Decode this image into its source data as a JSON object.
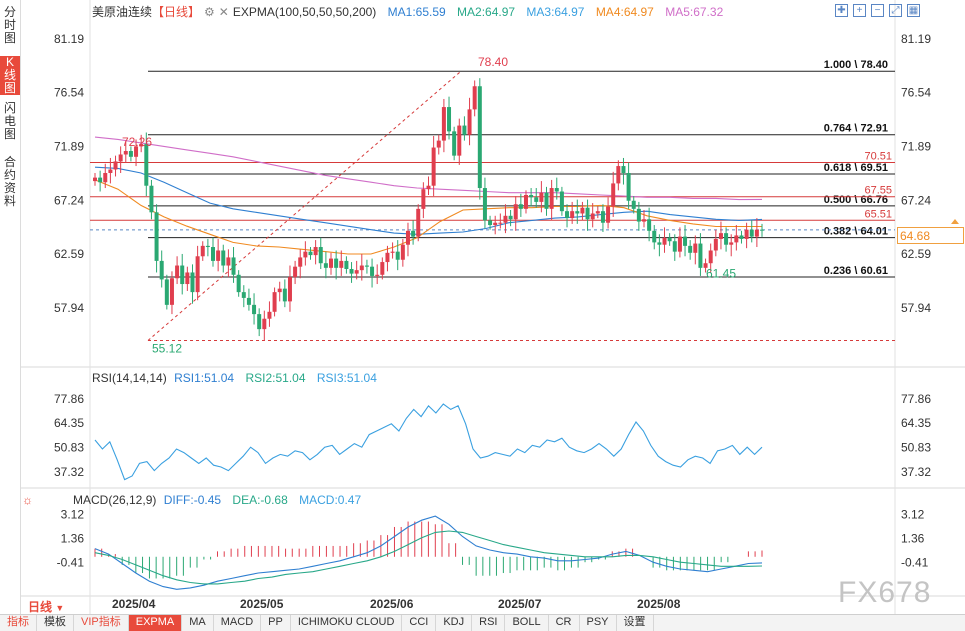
{
  "sidebar": {
    "tabs": [
      {
        "label": "分时图",
        "active": false
      },
      {
        "label": "K线图",
        "active": true
      },
      {
        "label": "闪电图",
        "active": false
      },
      {
        "label": "合约资料",
        "active": false
      }
    ]
  },
  "header": {
    "instrument": "美原油连续",
    "period_tag": "【日线】",
    "indicator": "EXPMA(100,50,50,50,200)",
    "ma": [
      {
        "label": "MA1:65.59",
        "color": "#2f7fd1"
      },
      {
        "label": "MA2:64.97",
        "color": "#28a889"
      },
      {
        "label": "MA3:64.97",
        "color": "#3aa0e0"
      },
      {
        "label": "MA4:64.97",
        "color": "#f08a20"
      },
      {
        "label": "MA5:67.32",
        "color": "#d06ec8"
      }
    ]
  },
  "price_axis": {
    "left": [
      "81.19",
      "76.54",
      "71.89",
      "67.24",
      "62.59",
      "57.94"
    ],
    "right": [
      "81.19",
      "76.54",
      "71.89",
      "67.24",
      "62.59",
      "57.94"
    ],
    "current": "64.68"
  },
  "fib_levels": [
    {
      "label": "1.000 \\ 78.40",
      "value": 78.4
    },
    {
      "label": "0.764 \\ 72.91",
      "value": 72.91
    },
    {
      "label": "0.618 \\ 69.51",
      "value": 69.51
    },
    {
      "label": "0.500 \\ 66.76",
      "value": 66.76
    },
    {
      "label": "0.382 \\ 64.01",
      "value": 64.01
    },
    {
      "label": "0.236 \\ 60.61",
      "value": 60.61
    }
  ],
  "red_levels": [
    {
      "label": "70.51",
      "value": 70.51
    },
    {
      "label": "67.55",
      "value": 67.55
    },
    {
      "label": "65.51",
      "value": 65.51
    }
  ],
  "annotations": {
    "high": "78.40",
    "low": "55.12",
    "peak_left": "72.26",
    "trough_right": "61.45"
  },
  "rsi": {
    "title": "RSI(14,14,14)",
    "rsi1": "RSI1:51.04",
    "rsi2": "RSI2:51.04",
    "rsi3": "RSI3:51.04",
    "axis": [
      "77.86",
      "64.35",
      "50.83",
      "37.32"
    ]
  },
  "macd": {
    "title": "MACD(26,12,9)",
    "diff": "DIFF:-0.45",
    "dea": "DEA:-0.68",
    "macd": "MACD:0.47",
    "axis": [
      "3.12",
      "1.36",
      "-0.41"
    ]
  },
  "date_axis": [
    "2025/04",
    "2025/05",
    "2025/06",
    "2025/07",
    "2025/08"
  ],
  "period_select": "日线",
  "bottom_tabs": [
    {
      "label": "指标",
      "style": "vip"
    },
    {
      "label": "模板",
      "style": ""
    },
    {
      "label": "VIP指标",
      "style": "vip"
    },
    {
      "label": "EXPMA",
      "style": "sel"
    },
    {
      "label": "MA",
      "style": ""
    },
    {
      "label": "MACD",
      "style": ""
    },
    {
      "label": "PP",
      "style": ""
    },
    {
      "label": "ICHIMOKU CLOUD",
      "style": ""
    },
    {
      "label": "CCI",
      "style": ""
    },
    {
      "label": "KDJ",
      "style": ""
    },
    {
      "label": "RSI",
      "style": ""
    },
    {
      "label": "BOLL",
      "style": ""
    },
    {
      "label": "CR",
      "style": ""
    },
    {
      "label": "PSY",
      "style": ""
    },
    {
      "label": "设置",
      "style": ""
    }
  ],
  "watermark": "FX678",
  "colors": {
    "up": "#e03e4e",
    "down": "#2aa872",
    "accent": "#e84a3b"
  },
  "chart_data": {
    "type": "candlestick",
    "closes": [
      69.2,
      68.8,
      69.6,
      69.9,
      70.6,
      71.2,
      71.5,
      71.0,
      71.9,
      72.1,
      68.5,
      66.2,
      62.0,
      60.4,
      58.2,
      60.5,
      61.6,
      60.0,
      61.0,
      59.3,
      62.4,
      63.3,
      63.2,
      62.0,
      62.9,
      61.6,
      62.3,
      60.8,
      59.3,
      58.8,
      58.2,
      57.4,
      56.1,
      57.0,
      57.6,
      59.3,
      59.6,
      58.5,
      60.6,
      61.5,
      62.3,
      62.8,
      62.5,
      63.2,
      61.8,
      61.4,
      62.2,
      61.4,
      62.0,
      61.3,
      60.9,
      61.2,
      61.6,
      61.5,
      60.7,
      60.8,
      61.9,
      62.7,
      62.8,
      62.1,
      63.4,
      64.6,
      64.1,
      66.5,
      68.2,
      68.5,
      71.8,
      72.4,
      75.3,
      73.2,
      71.1,
      73.7,
      72.9,
      75.1,
      77.1,
      68.3,
      65.5,
      65.1,
      65.3,
      65.3,
      65.9,
      65.6,
      66.9,
      66.5,
      67.7,
      67.5,
      67.1,
      67.9,
      66.5,
      68.3,
      68.0,
      66.3,
      65.7,
      66.3,
      66.1,
      66.6,
      65.6,
      66.1,
      66.3,
      65.3,
      66.7,
      68.7,
      70.2,
      69.6,
      67.2,
      66.5,
      65.4,
      65.6,
      64.6,
      63.6,
      63.4,
      64.0,
      63.7,
      62.8,
      64.1,
      63.3,
      62.7,
      63.5,
      61.4,
      61.8,
      62.9,
      63.9,
      64.4,
      63.4,
      63.6,
      64.2,
      63.9,
      64.7,
      64.1,
      64.7,
      64.68
    ],
    "ylim": [
      53.0,
      83.0
    ],
    "high": 78.4,
    "low": 55.12,
    "ma_series": [
      {
        "name": "MA1",
        "values": [
          70.1,
          70.0,
          69.6,
          68.8,
          67.9,
          67.0,
          66.5,
          66.2,
          65.9,
          65.6,
          65.3,
          65.0,
          64.7,
          64.4,
          64.3,
          64.4,
          64.5,
          64.8,
          65.3,
          65.5,
          65.7,
          65.8,
          66.0,
          66.2,
          66.3,
          66.0,
          65.8,
          65.6,
          65.5,
          65.59
        ],
        "color": "#2f7fd1"
      },
      {
        "name": "MA4",
        "values": [
          69.0,
          68.2,
          66.8,
          65.8,
          65.0,
          64.3,
          63.6,
          63.3,
          63.2,
          63.0,
          62.8,
          62.6,
          62.6,
          63.2,
          64.0,
          65.4,
          66.4,
          66.5,
          66.6,
          66.6,
          66.7,
          66.7,
          66.8,
          66.6,
          65.9,
          65.5,
          65.2,
          64.97,
          64.97,
          64.97
        ],
        "color": "#f08a20"
      },
      {
        "name": "MA5",
        "values": [
          72.7,
          72.5,
          72.2,
          71.9,
          71.6,
          71.3,
          71.0,
          70.6,
          70.2,
          69.8,
          69.4,
          69.1,
          68.8,
          68.5,
          68.3,
          68.2,
          68.1,
          68.0,
          67.9,
          67.9,
          67.9,
          67.8,
          67.7,
          67.6,
          67.5,
          67.5,
          67.4,
          67.4,
          67.3,
          67.32
        ],
        "color": "#d06ec8"
      }
    ],
    "rsi_values": [
      55,
      50,
      54,
      44,
      33,
      35,
      42,
      43,
      38,
      42,
      45,
      50,
      48,
      45,
      42,
      45,
      41,
      40,
      38,
      42,
      46,
      51,
      48,
      42,
      45,
      47,
      46,
      49,
      48,
      44,
      47,
      51,
      52,
      47,
      50,
      53,
      51,
      58,
      60,
      62,
      64,
      60,
      67,
      72,
      68,
      74,
      70,
      75,
      72,
      74,
      64,
      50,
      45,
      46,
      48,
      47,
      46,
      50,
      48,
      52,
      51,
      55,
      54,
      56,
      51,
      49,
      48,
      50,
      53,
      50,
      46,
      50,
      58,
      65,
      60,
      52,
      46,
      43,
      41,
      40,
      44,
      46,
      45,
      42,
      49,
      50,
      52,
      47,
      51,
      47,
      51
    ],
    "rsi_ylim": [
      30,
      85
    ],
    "macd_diff": [
      0.6,
      0.2,
      -0.5,
      -1.2,
      -1.8,
      -2.2,
      -2.4,
      -2.3,
      -2.1,
      -1.8,
      -1.6,
      -1.4,
      -1.2,
      -1.1,
      -1.0,
      -0.9,
      -0.7,
      -0.5,
      -0.3,
      0.0,
      0.3,
      0.8,
      1.5,
      2.2,
      2.7,
      3.0,
      2.4,
      1.5,
      0.8,
      0.5,
      0.3,
      0.2,
      0.0,
      -0.1,
      -0.3,
      -0.3,
      -0.2,
      -0.1,
      0.2,
      0.4,
      0.1,
      -0.4,
      -0.7,
      -0.9,
      -1.0,
      -1.1,
      -0.9,
      -0.7,
      -0.5,
      -0.45
    ],
    "macd_dea": [
      0.3,
      0.1,
      -0.2,
      -0.6,
      -1.0,
      -1.4,
      -1.7,
      -1.9,
      -2.0,
      -2.0,
      -1.9,
      -1.8,
      -1.6,
      -1.5,
      -1.3,
      -1.2,
      -1.1,
      -0.9,
      -0.7,
      -0.5,
      -0.3,
      0.0,
      0.4,
      0.9,
      1.4,
      1.8,
      1.9,
      1.8,
      1.5,
      1.2,
      0.9,
      0.7,
      0.5,
      0.3,
      0.2,
      0.1,
      0.0,
      0.0,
      0.0,
      0.1,
      0.1,
      0.0,
      -0.2,
      -0.4,
      -0.5,
      -0.6,
      -0.7,
      -0.7,
      -0.7,
      -0.68
    ],
    "macd_ylim": [
      -2.6,
      3.6
    ]
  }
}
